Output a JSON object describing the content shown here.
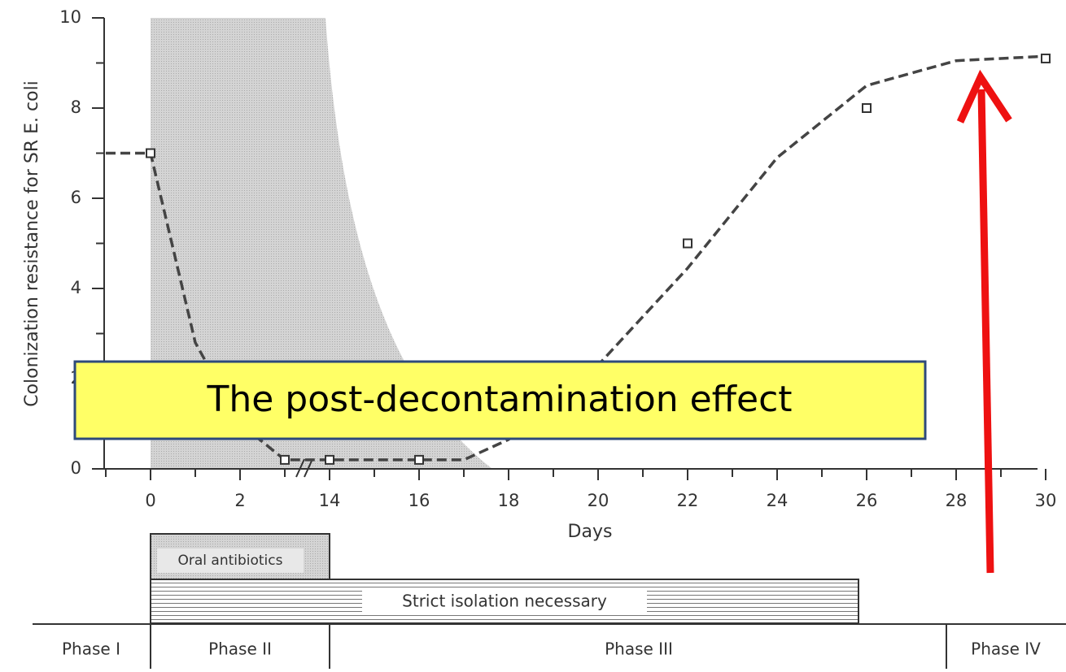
{
  "chart_data": {
    "type": "scatter",
    "y_label": "Colonization resistance for SR E. coli",
    "x_label": "Days",
    "xticks": [
      0,
      2,
      14,
      16,
      18,
      20,
      22,
      24,
      26,
      28,
      30
    ],
    "xminor_ticks": [
      -1,
      1,
      3,
      15,
      17,
      19,
      21,
      23,
      25,
      27,
      29
    ],
    "ylim": [
      0,
      10
    ],
    "yticks": [
      0,
      2,
      4,
      6,
      8,
      10
    ],
    "yminor_ticks": [
      1,
      3,
      5,
      7,
      9
    ],
    "series": [
      {
        "x": [
          0,
          3,
          14,
          16,
          22,
          26,
          30
        ],
        "values": [
          7,
          0.2,
          0.2,
          0.2,
          5,
          8,
          9.1
        ],
        "color": "#333333"
      }
    ],
    "fit": {
      "x": [
        -1,
        0,
        1,
        2,
        3,
        14,
        16,
        17,
        18,
        20,
        22,
        24,
        26,
        28,
        30
      ],
      "values": [
        7,
        7,
        2.8,
        1,
        0.2,
        0.2,
        0.2,
        0.2,
        0.65,
        2.3,
        4.45,
        6.9,
        8.5,
        9.05,
        9.15
      ]
    },
    "annotation": "The post-decontamination effect"
  },
  "timeline": {
    "bars": [
      "Oral antibiotics",
      "Strict isolation necessary"
    ],
    "phases": [
      "Phase I",
      "Phase II",
      "Phase III",
      "Phase IV"
    ]
  }
}
